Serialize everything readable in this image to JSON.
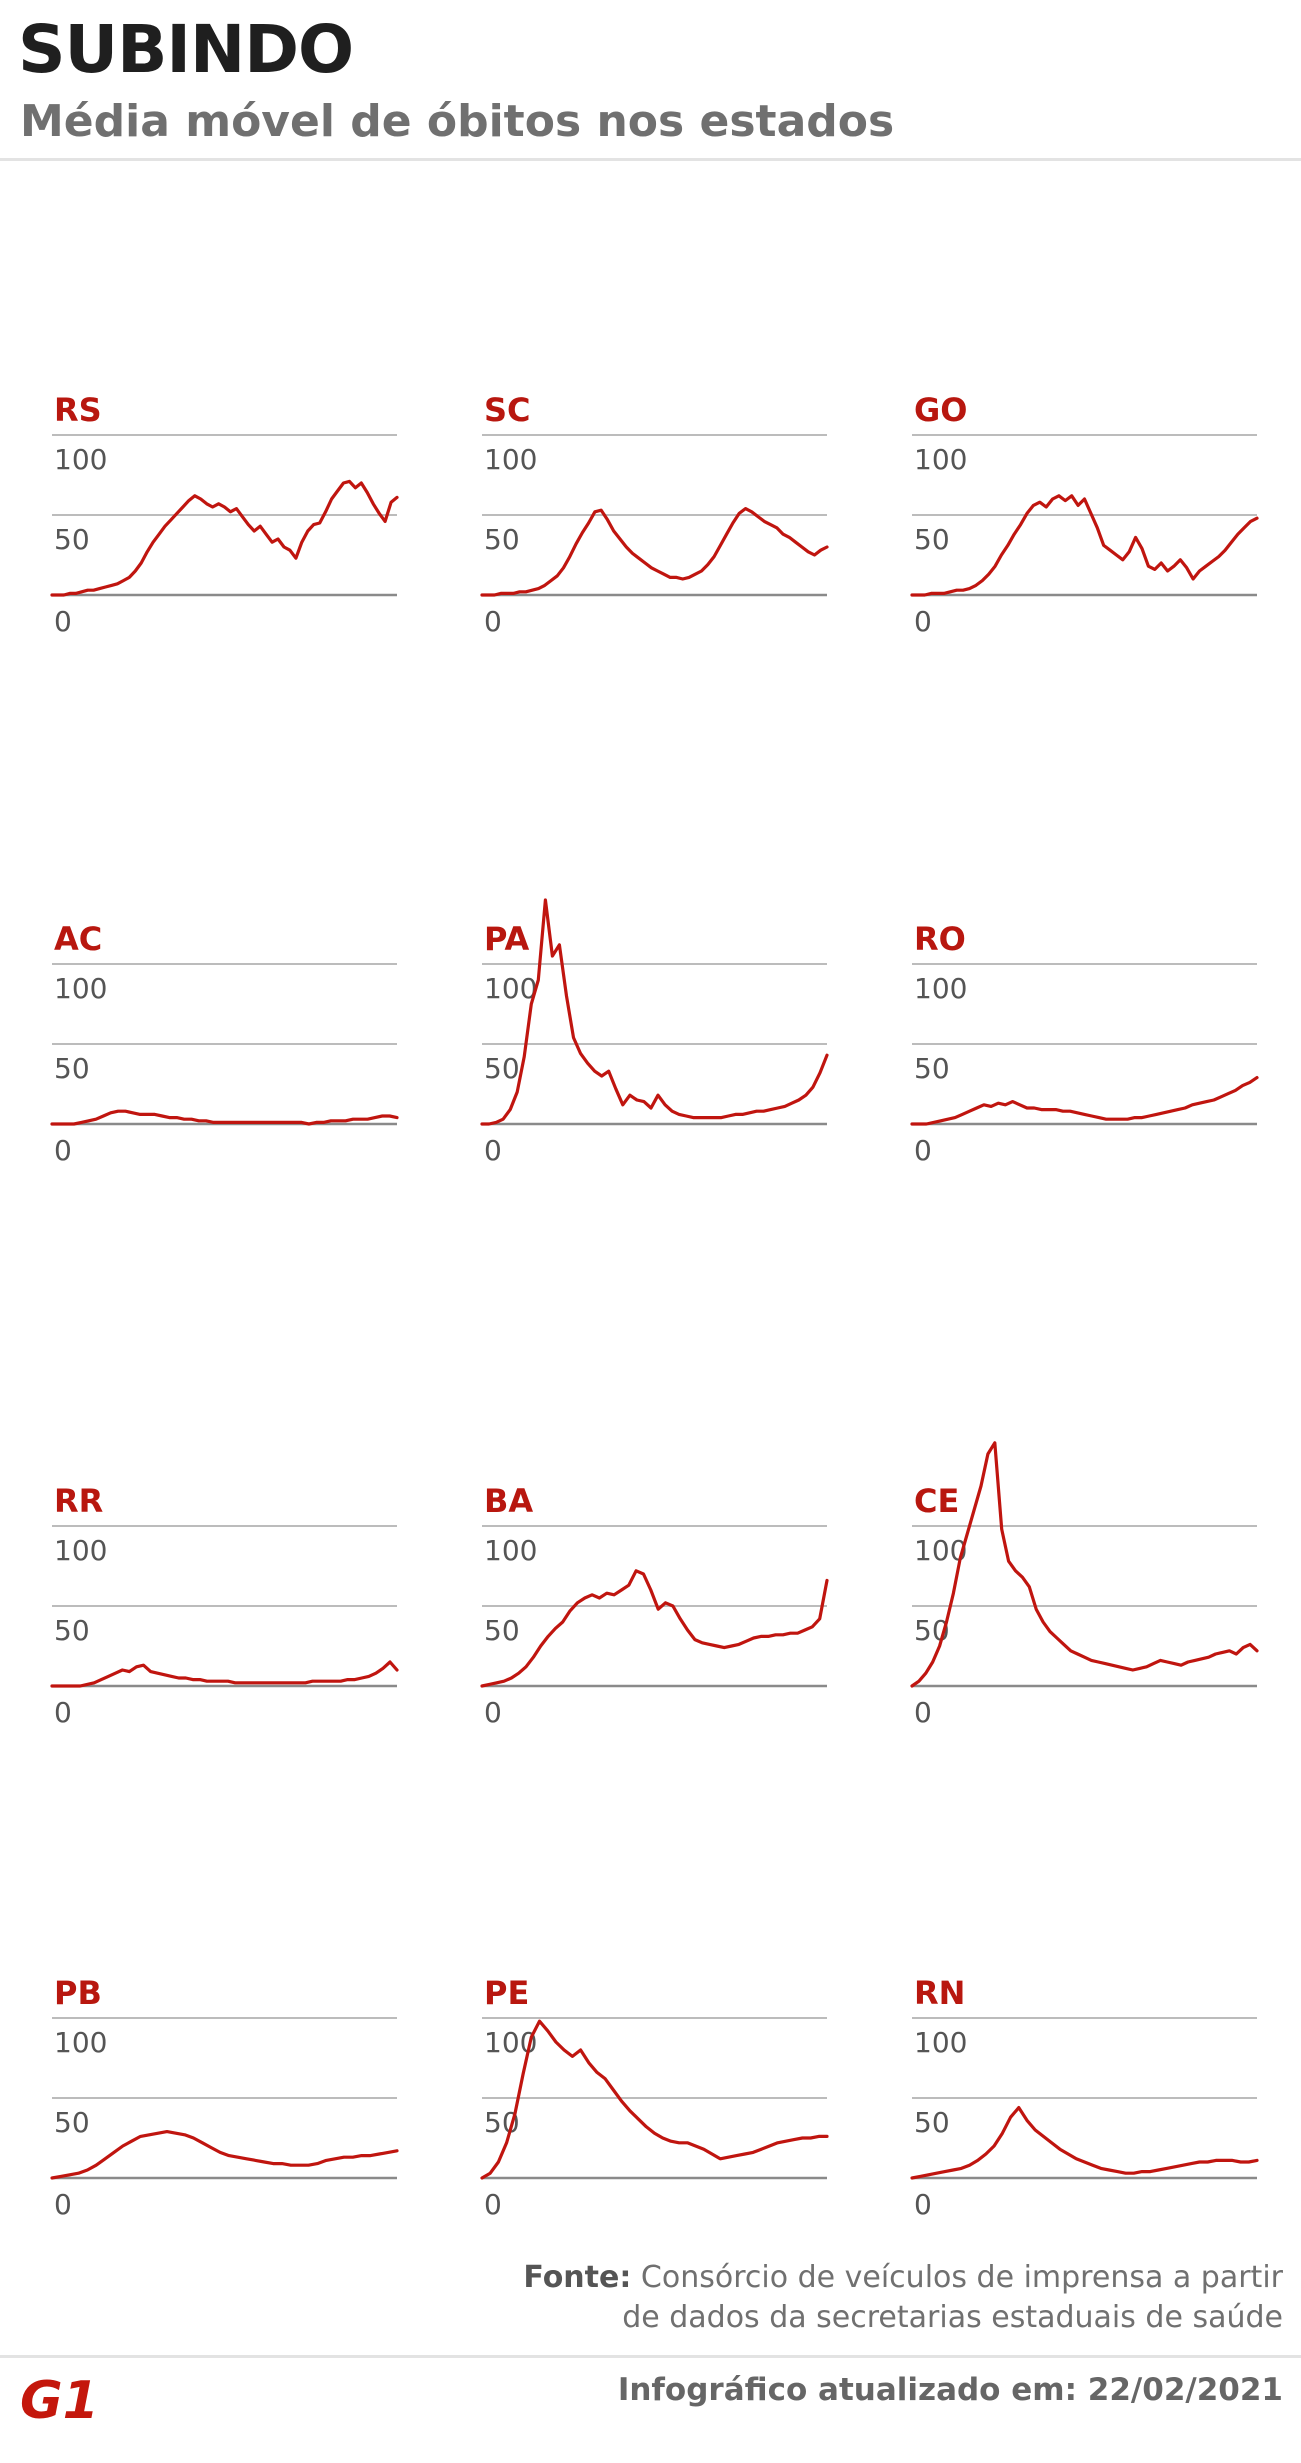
{
  "header": {
    "title": "SUBINDO",
    "subtitle": "Média móvel de óbitos nos estados"
  },
  "footer": {
    "source_label": "Fonte:",
    "source_line1": "Consórcio de veículos de imprensa a partir",
    "source_line2": "de dados da secretarias estaduais de saúde",
    "logo": "G1",
    "updated": "Infográfico atualizado em: 22/02/2021"
  },
  "colors": {
    "line": "#c0150f",
    "label": "#b8170f",
    "grid": "#bcbcbc",
    "axis": "#8a8a8a",
    "tick": "#555555"
  },
  "chart_data": [
    {
      "type": "line",
      "title": "RS",
      "yticks": [
        100,
        50,
        0
      ],
      "ylim": [
        0,
        100
      ],
      "values": [
        0,
        0,
        0,
        1,
        1,
        2,
        3,
        3,
        4,
        5,
        6,
        7,
        9,
        11,
        15,
        20,
        27,
        33,
        38,
        43,
        47,
        51,
        55,
        59,
        62,
        60,
        57,
        55,
        57,
        55,
        52,
        54,
        49,
        44,
        40,
        43,
        38,
        33,
        35,
        30,
        28,
        23,
        33,
        40,
        44,
        45,
        52,
        60,
        65,
        70,
        71,
        67,
        70,
        64,
        57,
        51,
        46,
        58,
        61
      ]
    },
    {
      "type": "line",
      "title": "SC",
      "yticks": [
        100,
        50,
        0
      ],
      "ylim": [
        0,
        100
      ],
      "values": [
        0,
        0,
        0,
        1,
        1,
        1,
        2,
        2,
        3,
        4,
        6,
        9,
        12,
        17,
        24,
        32,
        39,
        45,
        52,
        53,
        47,
        40,
        35,
        30,
        26,
        23,
        20,
        17,
        15,
        13,
        11,
        11,
        10,
        11,
        13,
        15,
        19,
        24,
        31,
        38,
        45,
        51,
        54,
        52,
        49,
        46,
        44,
        42,
        38,
        36,
        33,
        30,
        27,
        25,
        28,
        30
      ]
    },
    {
      "type": "line",
      "title": "GO",
      "yticks": [
        100,
        50,
        0
      ],
      "ylim": [
        0,
        100
      ],
      "values": [
        0,
        0,
        0,
        1,
        1,
        1,
        2,
        3,
        3,
        4,
        6,
        9,
        13,
        18,
        25,
        31,
        38,
        44,
        51,
        56,
        58,
        55,
        60,
        62,
        59,
        62,
        56,
        60,
        51,
        42,
        31,
        28,
        25,
        22,
        27,
        36,
        29,
        18,
        16,
        20,
        15,
        18,
        22,
        17,
        10,
        15,
        18,
        21,
        24,
        28,
        33,
        38,
        42,
        46,
        48
      ]
    },
    {
      "type": "line",
      "title": "AC",
      "yticks": [
        100,
        50,
        0
      ],
      "ylim": [
        0,
        100
      ],
      "values": [
        0,
        0,
        0,
        0,
        1,
        2,
        3,
        5,
        7,
        8,
        8,
        7,
        6,
        6,
        6,
        5,
        4,
        4,
        3,
        3,
        2,
        2,
        1,
        1,
        1,
        1,
        1,
        1,
        1,
        1,
        1,
        1,
        1,
        1,
        1,
        0,
        1,
        1,
        2,
        2,
        2,
        3,
        3,
        3,
        4,
        5,
        5,
        4
      ]
    },
    {
      "type": "line",
      "title": "PA",
      "yticks": [
        100,
        50,
        0
      ],
      "ylim": [
        0,
        100
      ],
      "values": [
        0,
        0,
        1,
        3,
        9,
        20,
        42,
        75,
        90,
        140,
        105,
        112,
        80,
        54,
        44,
        38,
        33,
        30,
        33,
        22,
        12,
        18,
        15,
        14,
        10,
        18,
        12,
        8,
        6,
        5,
        4,
        4,
        4,
        4,
        4,
        5,
        6,
        6,
        7,
        8,
        8,
        9,
        10,
        11,
        13,
        15,
        18,
        23,
        32,
        43
      ]
    },
    {
      "type": "line",
      "title": "RO",
      "yticks": [
        100,
        50,
        0
      ],
      "ylim": [
        0,
        100
      ],
      "values": [
        0,
        0,
        0,
        1,
        2,
        3,
        4,
        6,
        8,
        10,
        12,
        11,
        13,
        12,
        14,
        12,
        10,
        10,
        9,
        9,
        9,
        8,
        8,
        7,
        6,
        5,
        4,
        3,
        3,
        3,
        3,
        4,
        4,
        5,
        6,
        7,
        8,
        9,
        10,
        12,
        13,
        14,
        15,
        17,
        19,
        21,
        24,
        26,
        29
      ]
    },
    {
      "type": "line",
      "title": "RR",
      "yticks": [
        100,
        50,
        0
      ],
      "ylim": [
        0,
        100
      ],
      "values": [
        0,
        0,
        0,
        0,
        0,
        1,
        2,
        4,
        6,
        8,
        10,
        9,
        12,
        13,
        9,
        8,
        7,
        6,
        5,
        5,
        4,
        4,
        3,
        3,
        3,
        3,
        2,
        2,
        2,
        2,
        2,
        2,
        2,
        2,
        2,
        2,
        2,
        3,
        3,
        3,
        3,
        3,
        4,
        4,
        5,
        6,
        8,
        11,
        15,
        10
      ]
    },
    {
      "type": "line",
      "title": "BA",
      "yticks": [
        100,
        50,
        0
      ],
      "ylim": [
        0,
        100
      ],
      "values": [
        0,
        1,
        2,
        3,
        5,
        8,
        12,
        18,
        25,
        31,
        36,
        40,
        47,
        52,
        55,
        57,
        55,
        58,
        57,
        60,
        63,
        72,
        70,
        60,
        48,
        52,
        50,
        42,
        35,
        29,
        27,
        26,
        25,
        24,
        25,
        26,
        28,
        30,
        31,
        31,
        32,
        32,
        33,
        33,
        35,
        37,
        42,
        66
      ]
    },
    {
      "type": "line",
      "title": "CE",
      "yticks": [
        100,
        50,
        0
      ],
      "ylim": [
        0,
        100
      ],
      "values": [
        0,
        3,
        8,
        15,
        25,
        40,
        58,
        80,
        95,
        110,
        125,
        145,
        152,
        98,
        78,
        72,
        68,
        62,
        48,
        40,
        34,
        30,
        26,
        22,
        20,
        18,
        16,
        15,
        14,
        13,
        12,
        11,
        10,
        11,
        12,
        14,
        16,
        15,
        14,
        13,
        15,
        16,
        17,
        18,
        20,
        21,
        22,
        20,
        24,
        26,
        22
      ]
    },
    {
      "type": "line",
      "title": "PB",
      "yticks": [
        100,
        50,
        0
      ],
      "ylim": [
        0,
        100
      ],
      "values": [
        0,
        1,
        2,
        3,
        5,
        8,
        12,
        16,
        20,
        23,
        26,
        27,
        28,
        29,
        28,
        27,
        25,
        22,
        19,
        16,
        14,
        13,
        12,
        11,
        10,
        9,
        9,
        8,
        8,
        8,
        9,
        11,
        12,
        13,
        13,
        14,
        14,
        15,
        16,
        17
      ]
    },
    {
      "type": "line",
      "title": "PE",
      "yticks": [
        100,
        50,
        0
      ],
      "ylim": [
        0,
        100
      ],
      "values": [
        0,
        3,
        10,
        22,
        40,
        65,
        88,
        98,
        92,
        85,
        80,
        76,
        80,
        72,
        66,
        62,
        55,
        48,
        42,
        37,
        32,
        28,
        25,
        23,
        22,
        22,
        20,
        18,
        15,
        12,
        13,
        14,
        15,
        16,
        18,
        20,
        22,
        23,
        24,
        25,
        25,
        26,
        26
      ]
    },
    {
      "type": "line",
      "title": "RN",
      "yticks": [
        100,
        50,
        0
      ],
      "ylim": [
        0,
        100
      ],
      "values": [
        0,
        1,
        2,
        3,
        4,
        5,
        6,
        8,
        11,
        15,
        20,
        28,
        38,
        44,
        36,
        30,
        26,
        22,
        18,
        15,
        12,
        10,
        8,
        6,
        5,
        4,
        3,
        3,
        4,
        4,
        5,
        6,
        7,
        8,
        9,
        10,
        10,
        11,
        11,
        11,
        10,
        10,
        11
      ]
    }
  ]
}
